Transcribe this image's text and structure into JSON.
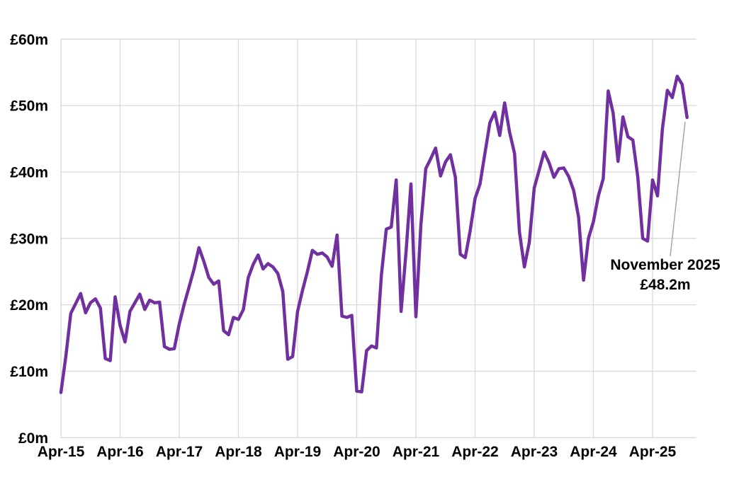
{
  "chart_data": {
    "type": "line",
    "title": "",
    "unit": "£m",
    "x": {
      "start": "Apr-2015",
      "end": "Nov-2025",
      "step_months": 1,
      "points": 128
    },
    "values": [
      6.8,
      12.3,
      18.7,
      20.2,
      21.7,
      18.8,
      20.3,
      20.9,
      19.5,
      11.9,
      11.6,
      21.2,
      16.9,
      14.4,
      19.0,
      20.3,
      21.6,
      19.3,
      20.7,
      20.3,
      20.4,
      13.7,
      13.3,
      13.4,
      17.1,
      20.1,
      22.7,
      25.4,
      28.6,
      26.5,
      24.1,
      23.1,
      23.6,
      16.1,
      15.5,
      18.1,
      17.8,
      19.3,
      24.1,
      26.1,
      27.5,
      25.4,
      26.2,
      25.7,
      24.7,
      22.0,
      11.8,
      12.2,
      19.0,
      22.2,
      25.0,
      28.2,
      27.6,
      27.8,
      27.2,
      25.8,
      30.5,
      18.3,
      18.1,
      18.4,
      7.0,
      6.9,
      13.1,
      13.8,
      13.5,
      24.5,
      31.4,
      31.7,
      38.8,
      19.0,
      28.0,
      38.2,
      18.2,
      32.0,
      40.5,
      42.0,
      43.6,
      39.4,
      41.5,
      42.6,
      39.2,
      27.6,
      27.1,
      31.1,
      36.0,
      38.2,
      42.8,
      47.4,
      49.0,
      45.5,
      50.4,
      46.0,
      42.8,
      31.0,
      25.7,
      29.4,
      37.6,
      40.3,
      43.0,
      41.4,
      39.2,
      40.5,
      40.6,
      39.3,
      37.2,
      33.2,
      23.7,
      30.0,
      32.5,
      36.4,
      39.0,
      52.2,
      48.9,
      41.6,
      48.3,
      45.3,
      44.8,
      39.3,
      30.0,
      29.6,
      38.8,
      36.4,
      46.5,
      52.3,
      51.2,
      54.4,
      53.2,
      48.2
    ],
    "y_tick_labels": [
      "£0m",
      "£10m",
      "£20m",
      "£30m",
      "£40m",
      "£50m",
      "£60m"
    ],
    "y_tick_values": [
      0,
      10,
      20,
      30,
      40,
      50,
      60
    ],
    "x_tick_labels": [
      "Apr-15",
      "Apr-16",
      "Apr-17",
      "Apr-18",
      "Apr-19",
      "Apr-20",
      "Apr-21",
      "Apr-22",
      "Apr-23",
      "Apr-24",
      "Apr-25"
    ],
    "ylim": [
      0,
      60
    ],
    "grid": true,
    "legend": "none",
    "line_color": "#7030A0",
    "gridline_color": "#D9D9D9",
    "annotation": {
      "line1": "November 2025",
      "line2": "£48.2m",
      "target_month": "Nov-2025",
      "target_value": 48.2,
      "leader_color": "#A6A6A6"
    }
  }
}
